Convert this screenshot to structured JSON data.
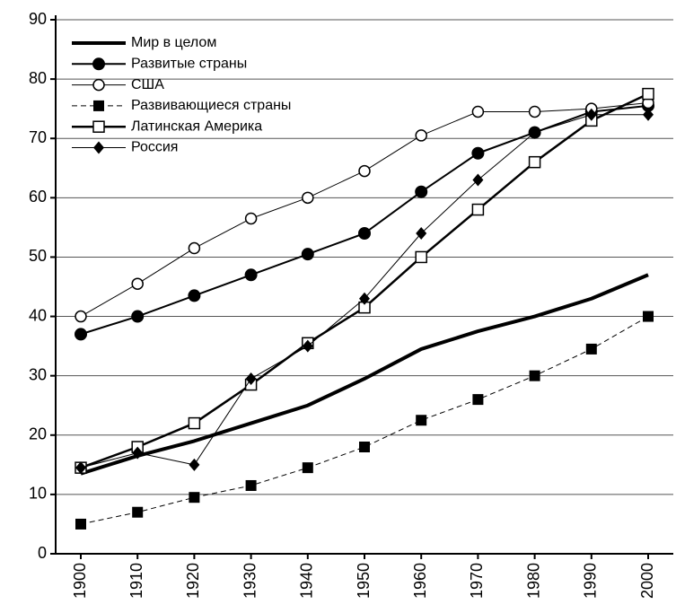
{
  "chart_data": {
    "type": "line",
    "categories": [
      "1900",
      "1910",
      "1920",
      "1930",
      "1940",
      "1950",
      "1960",
      "1970",
      "1980",
      "1990",
      "2000"
    ],
    "ylim": [
      0,
      90
    ],
    "yticks": [
      0,
      10,
      20,
      30,
      40,
      50,
      60,
      70,
      80,
      90
    ],
    "grid": true,
    "legend": "top-left",
    "series": [
      {
        "name": "Мир в целом",
        "color": "#000",
        "marker": "none",
        "width": 4,
        "dash": "none",
        "values": [
          13.5,
          16.5,
          19,
          22,
          25,
          29.5,
          34.5,
          37.5,
          40,
          43,
          47
        ]
      },
      {
        "name": "Развитые страны",
        "color": "#000",
        "marker": "circle-filled",
        "width": 2,
        "dash": "none",
        "values": [
          37,
          40,
          43.5,
          47,
          50.5,
          54,
          61,
          67.5,
          71,
          74.5,
          75.5
        ]
      },
      {
        "name": "США",
        "color": "#000",
        "marker": "circle-open",
        "width": 1,
        "dash": "none",
        "values": [
          40,
          45.5,
          51.5,
          56.5,
          60,
          64.5,
          70.5,
          74.5,
          74.5,
          75,
          76
        ]
      },
      {
        "name": "Развивающиеся страны",
        "color": "#000",
        "marker": "square-filled",
        "width": 1,
        "dash": "6,4",
        "values": [
          5,
          7,
          9.5,
          11.5,
          14.5,
          18,
          22.5,
          26,
          30,
          34.5,
          40
        ]
      },
      {
        "name": "Латинская Америка",
        "color": "#000",
        "marker": "square-open",
        "width": 2.5,
        "dash": "none",
        "values": [
          14.5,
          18,
          22,
          28.5,
          35.5,
          41.5,
          50,
          58,
          66,
          73,
          77.5
        ]
      },
      {
        "name": "Россия",
        "color": "#000",
        "marker": "diamond",
        "width": 1,
        "dash": "none",
        "values": [
          14.5,
          17,
          15,
          29.5,
          35,
          43,
          54,
          63,
          71,
          74,
          74
        ]
      }
    ]
  }
}
